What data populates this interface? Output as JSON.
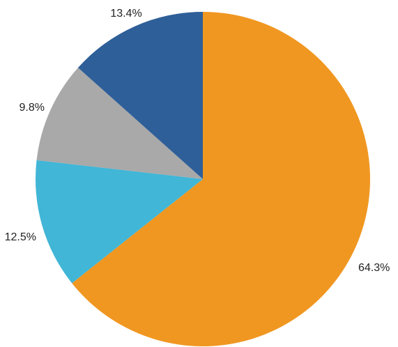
{
  "chart_data": {
    "type": "pie",
    "slices": [
      {
        "label": "64.3%",
        "value": 64.3,
        "color": "#F09721"
      },
      {
        "label": "12.5%",
        "value": 12.5,
        "color": "#41B6D6"
      },
      {
        "label": "9.8%",
        "value": 9.8,
        "color": "#A9A9A9"
      },
      {
        "label": "13.4%",
        "value": 13.4,
        "color": "#2E5F98"
      }
    ],
    "start_angle_deg": 0,
    "direction": "clockwise",
    "legend": "none"
  }
}
